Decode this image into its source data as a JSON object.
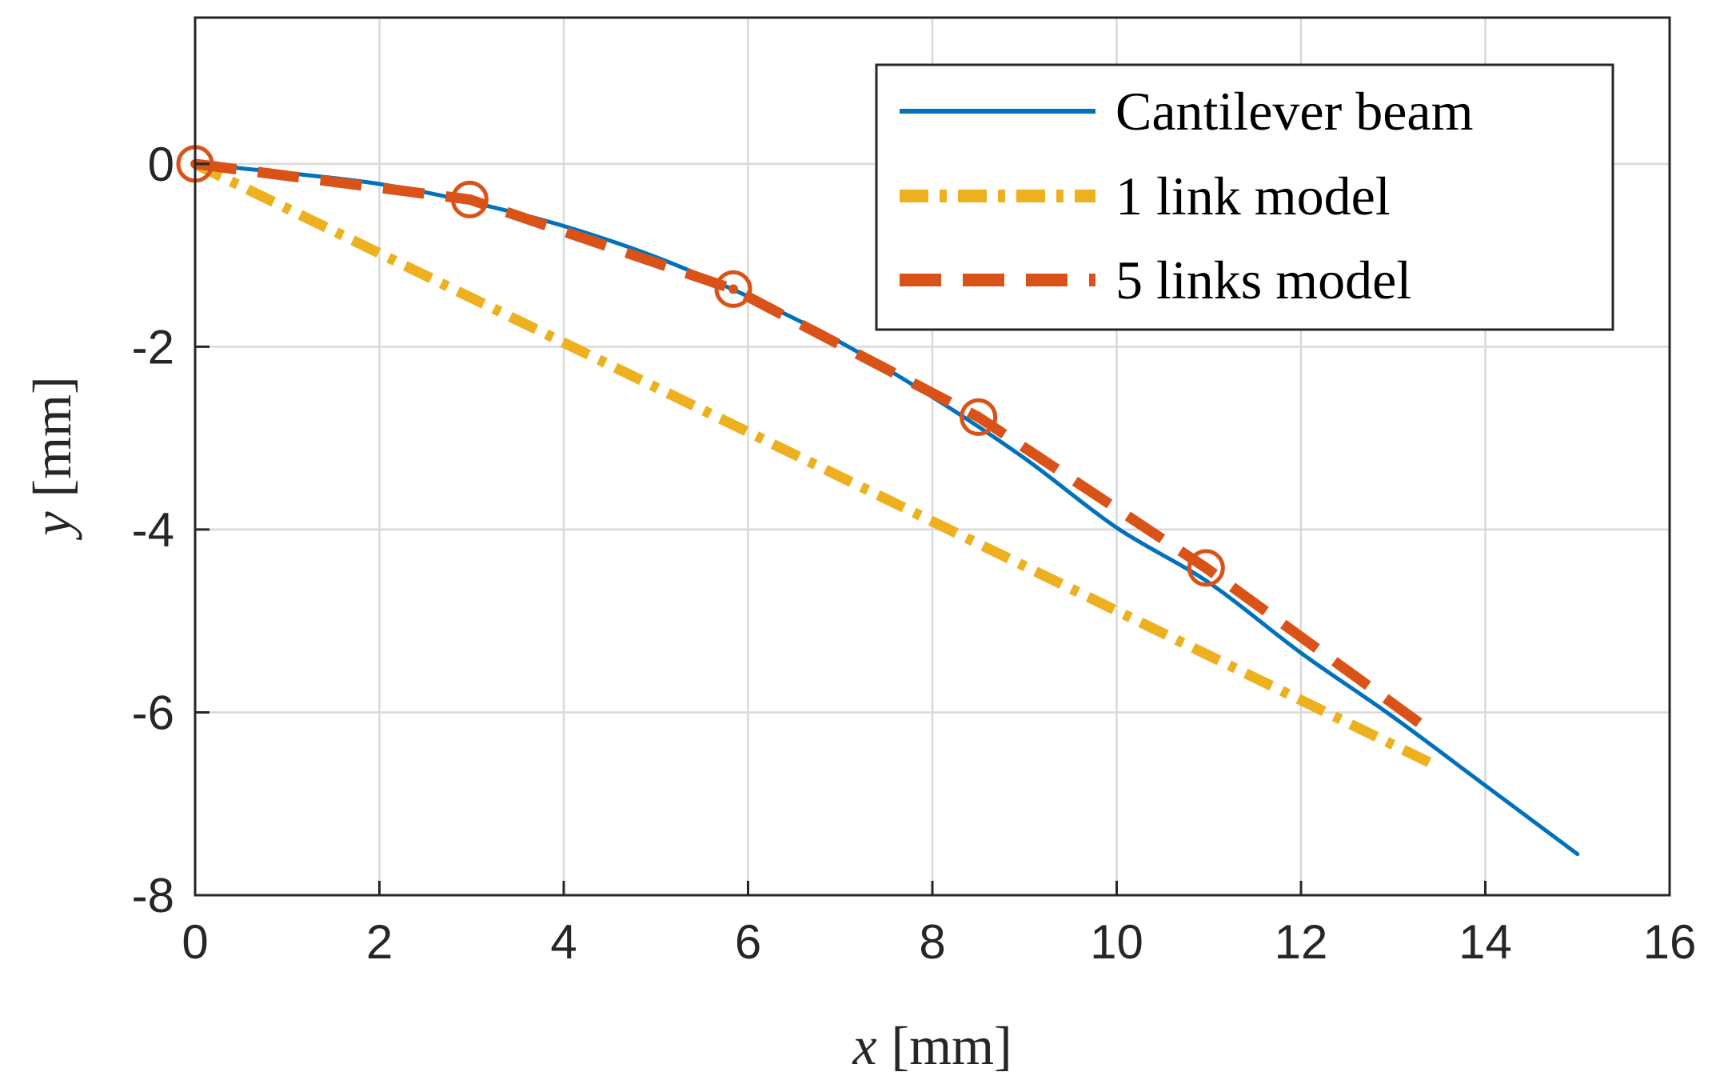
{
  "chart_data": {
    "type": "line",
    "title": "",
    "xlabel": {
      "var": "x",
      "unit": "[mm]"
    },
    "ylabel": {
      "var": "y",
      "unit": "[mm]"
    },
    "xlim": [
      0,
      16
    ],
    "ylim": [
      -8,
      1.6
    ],
    "xticks": [
      0,
      2,
      4,
      6,
      8,
      10,
      12,
      14,
      16
    ],
    "yticks": [
      0,
      -2,
      -4,
      -6,
      -8
    ],
    "xtick_labels": [
      "0",
      "2",
      "4",
      "6",
      "8",
      "10",
      "12",
      "14",
      "16"
    ],
    "ytick_labels": [
      "0",
      "-2",
      "-4",
      "-6",
      "-8"
    ],
    "grid": true,
    "legend_position": "top-right",
    "series": [
      {
        "name": "Cantilever beam",
        "style": "solid",
        "color": "#0072BD",
        "x": [
          0,
          1,
          2,
          3,
          4,
          5,
          6,
          7,
          8,
          9,
          10,
          11,
          12,
          13,
          14,
          15
        ],
        "y": [
          0,
          -0.1,
          -0.22,
          -0.42,
          -0.68,
          -1.02,
          -1.45,
          -1.95,
          -2.55,
          -3.22,
          -3.98,
          -4.58,
          -5.35,
          -6.05,
          -6.8,
          -7.55
        ]
      },
      {
        "name": "1 link model",
        "style": "dash-dot",
        "color": "#EDB120",
        "x": [
          0,
          13.5
        ],
        "y": [
          0,
          -6.6
        ]
      },
      {
        "name": "5 links model",
        "style": "dashed",
        "color": "#D95319",
        "x": [
          0,
          2.98,
          5.84,
          8.5,
          10.97,
          13.4
        ],
        "y": [
          0,
          -0.39,
          -1.37,
          -2.77,
          -4.42,
          -6.2
        ]
      }
    ],
    "joint_markers": {
      "series": "5 links model",
      "style": "circle",
      "color": "#D95319",
      "x": [
        0,
        2.98,
        5.84,
        8.5,
        10.97
      ],
      "y": [
        0,
        -0.39,
        -1.37,
        -2.77,
        -4.42
      ]
    }
  }
}
